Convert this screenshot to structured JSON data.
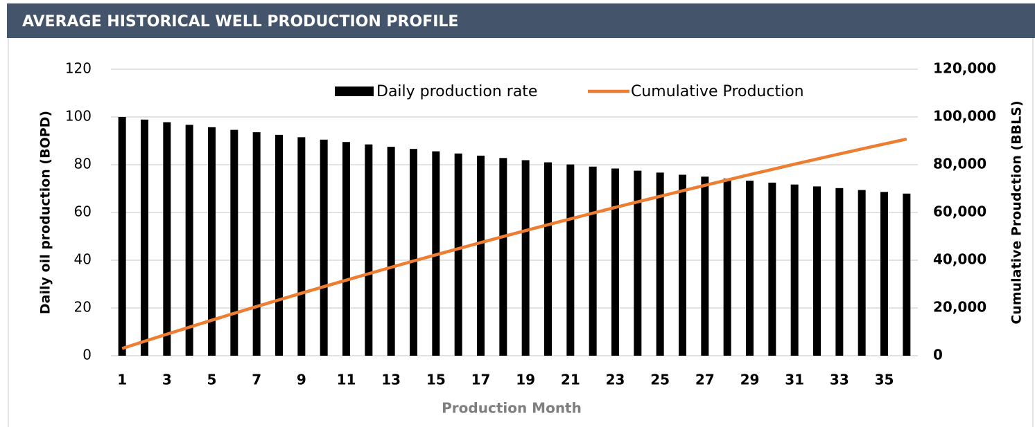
{
  "chart_data": {
    "type": "bar-line",
    "title": "AVERAGE HISTORICAL WELL PRODUCTION PROFILE",
    "x_label": "Production Month",
    "y_label": "Daily oil production (BOPD)",
    "y2_label": "Cumulative Proudction (BBLS)",
    "categories": [
      1,
      null,
      3,
      null,
      5,
      null,
      7,
      null,
      9,
      null,
      11,
      null,
      13,
      null,
      15,
      null,
      17,
      null,
      19,
      null,
      21,
      null,
      23,
      null,
      25,
      null,
      27,
      null,
      29,
      null,
      31,
      null,
      33,
      null,
      35,
      null
    ],
    "series": [
      {
        "name": "Daily production rate",
        "type": "bar",
        "color": "#000000",
        "values": [
          100,
          98.9,
          97.8,
          96.7,
          95.7,
          94.6,
          93.6,
          92.5,
          91.5,
          90.5,
          89.5,
          88.5,
          87.5,
          86.6,
          85.6,
          84.7,
          83.8,
          82.8,
          81.9,
          81.0,
          80.1,
          79.2,
          78.4,
          77.5,
          76.7,
          75.8,
          75.0,
          74.2,
          73.3,
          72.5,
          71.7,
          70.9,
          70.2,
          69.4,
          68.6,
          67.9
        ]
      },
      {
        "name": "Cumulative Production",
        "type": "line",
        "axis": "y2",
        "color": "#ed7d31",
        "values": [
          3040,
          6047,
          9020,
          11960,
          14870,
          17750,
          20590,
          23400,
          26180,
          28930,
          31650,
          34350,
          37030,
          39670,
          42260,
          44840,
          47390,
          49920,
          52410,
          54870,
          57300,
          59710,
          62110,
          64450,
          66760,
          69070,
          71350,
          73600,
          75850,
          78040,
          80230,
          82380,
          84510,
          86610,
          88680,
          90740
        ]
      }
    ],
    "ylim": [
      0,
      120
    ],
    "yticks": [
      0,
      20,
      40,
      60,
      80,
      100,
      120
    ],
    "y2lim": [
      0,
      120000
    ],
    "y2ticks": [
      0,
      {
        "value": 20000,
        "label": "20,000"
      },
      {
        "value": 40000,
        "label": "40,000"
      },
      {
        "value": 60000,
        "label": "60,000"
      },
      {
        "value": 80000,
        "label": "80,000"
      },
      {
        "value": 100000,
        "label": "100,000"
      },
      {
        "value": 120000,
        "label": "120,000"
      }
    ],
    "grid": true,
    "legend": "top"
  }
}
